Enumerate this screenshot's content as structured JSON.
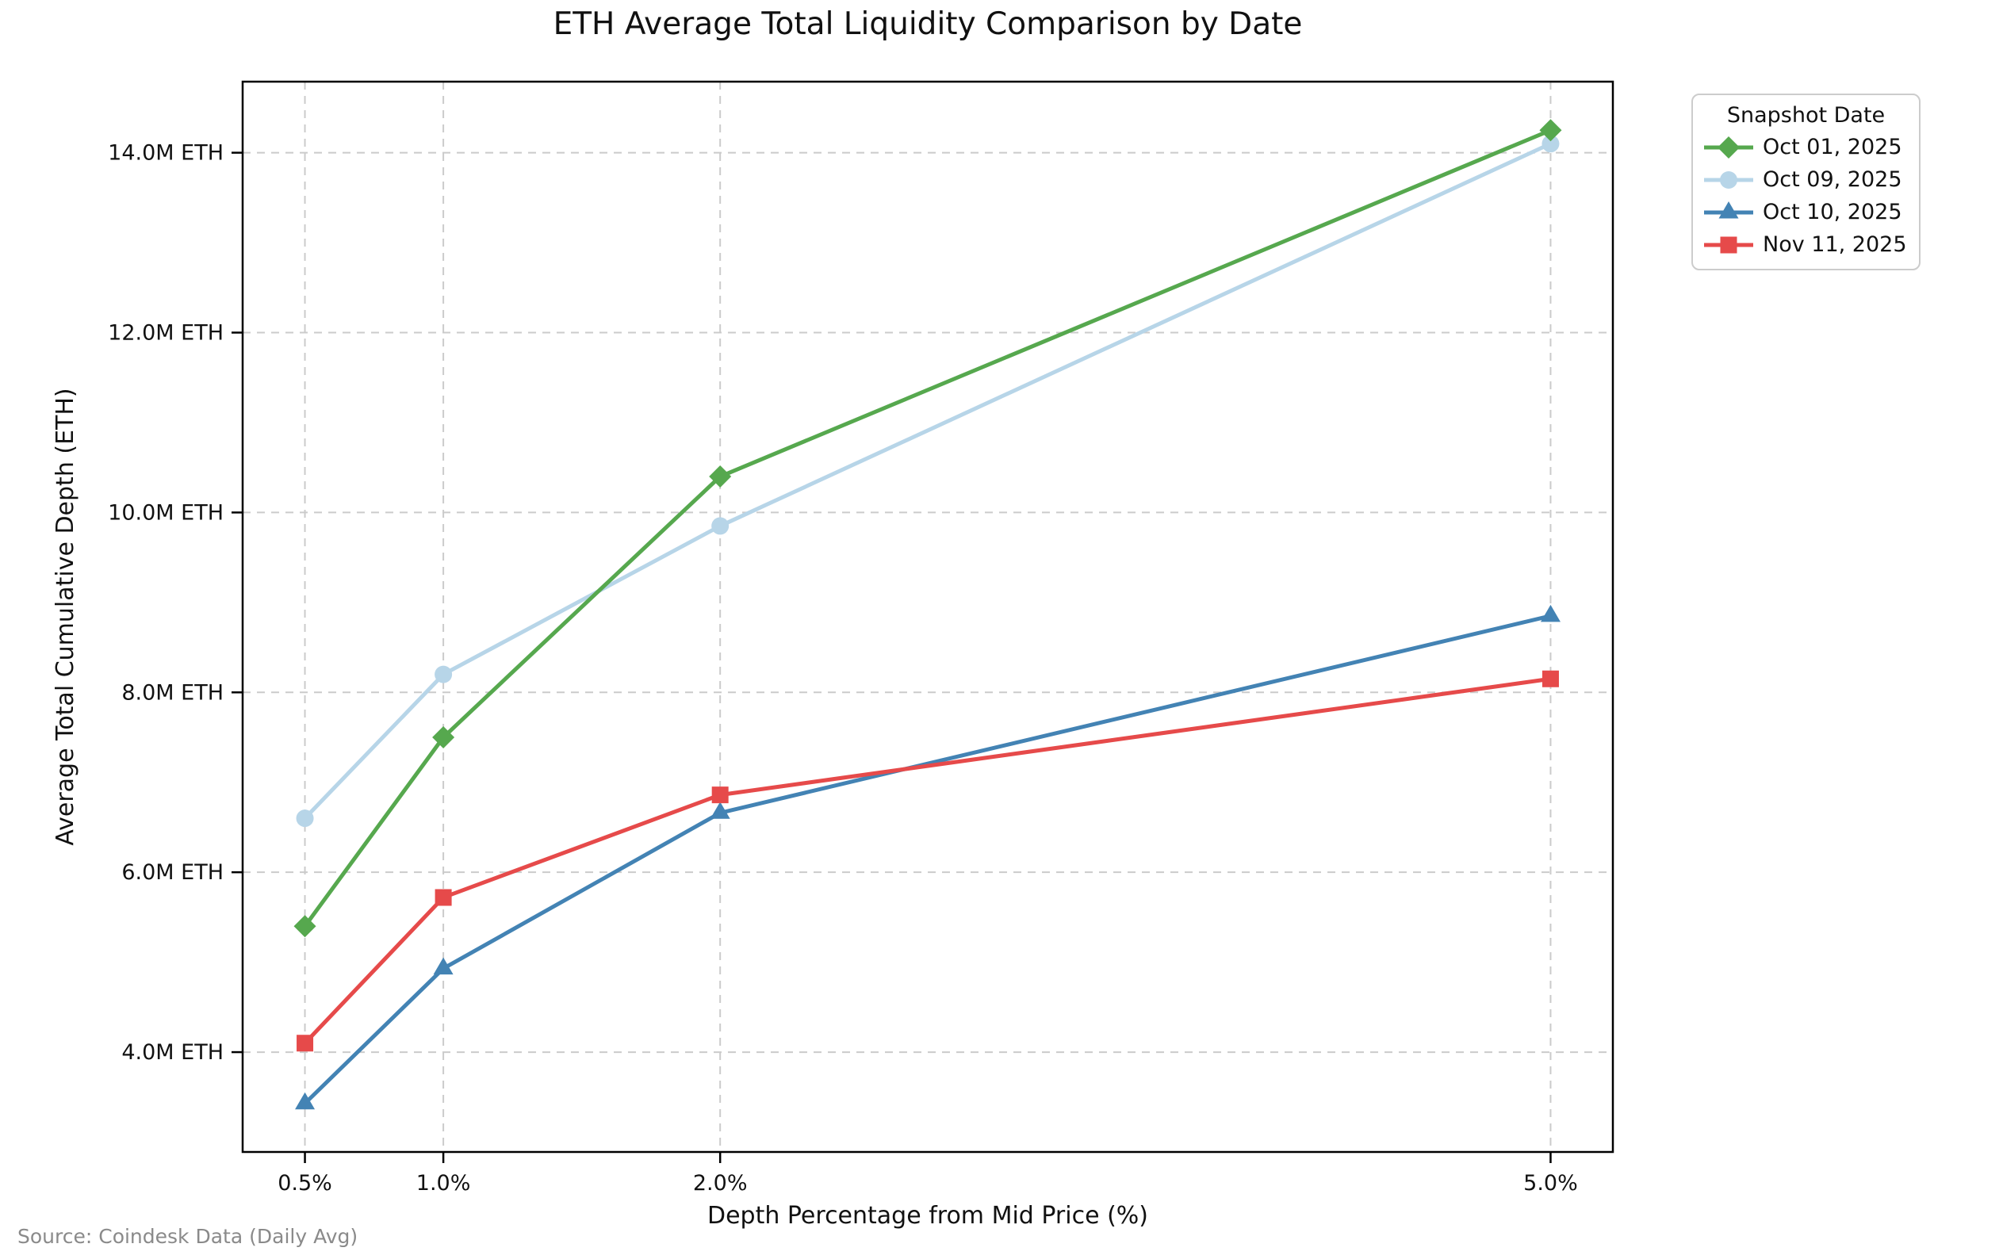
{
  "chart_data": {
    "type": "line",
    "title": "ETH Average Total Liquidity Comparison by Date",
    "xlabel": "Depth Percentage from Mid Price (%)",
    "ylabel": "Average Total Cumulative Depth (ETH)",
    "source": "Source: Coindesk Data (Daily Avg)",
    "legend_title": "Snapshot Date",
    "legend_position": "outside upper right",
    "grid": true,
    "values_unit": "millions of ETH",
    "x": [
      0.5,
      1.0,
      2.0,
      5.0
    ],
    "x_tick_labels": [
      "0.5%",
      "1.0%",
      "2.0%",
      "5.0%"
    ],
    "y_ticks": [
      4,
      6,
      8,
      10,
      12,
      14
    ],
    "y_tick_labels": [
      "4.0M ETH",
      "6.0M ETH",
      "8.0M ETH",
      "10.0M ETH",
      "12.0M ETH",
      "14.0M ETH"
    ],
    "xlim": [
      0.275,
      5.225
    ],
    "ylim": [
      2.89,
      14.79
    ],
    "series": [
      {
        "name": "Oct 01, 2025",
        "marker": "diamond",
        "color": "#56a84e",
        "values": [
          5.4,
          7.5,
          10.4,
          14.25
        ]
      },
      {
        "name": "Oct 09, 2025",
        "marker": "circle",
        "color": "#b7d5e8",
        "values": [
          6.6,
          8.2,
          9.85,
          14.1
        ]
      },
      {
        "name": "Oct 10, 2025",
        "marker": "triangle",
        "color": "#4383b4",
        "values": [
          3.43,
          4.93,
          6.66,
          8.85
        ]
      },
      {
        "name": "Nov 11, 2025",
        "marker": "square",
        "color": "#e64a4a",
        "values": [
          4.1,
          5.72,
          6.86,
          8.15
        ]
      }
    ],
    "style": {
      "grid_color": "#cbcbcb",
      "spine_color": "#000000",
      "tick_label_color": "#111111",
      "source_color": "#8a8a8a",
      "legend_border_color": "#cccccc"
    }
  }
}
